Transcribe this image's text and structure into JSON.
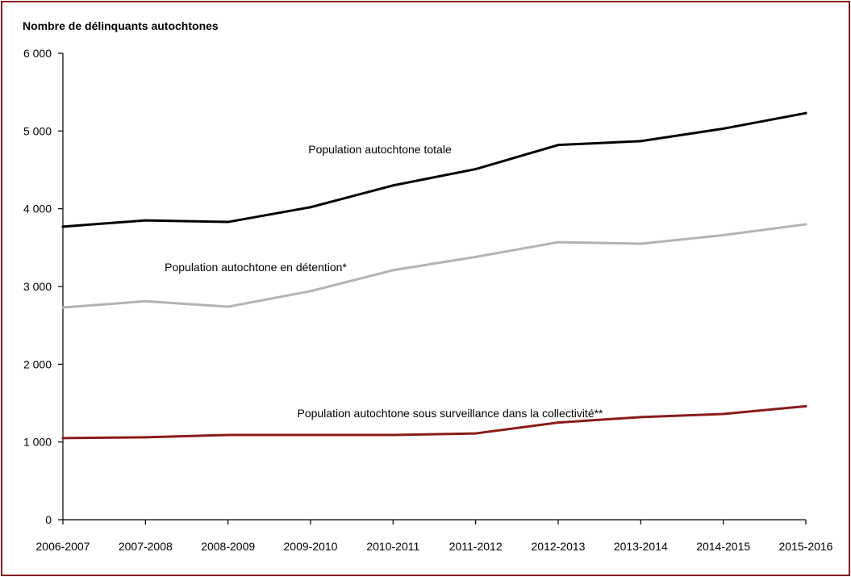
{
  "chart_data": {
    "type": "line",
    "title": "",
    "ylabel": "Nombre de délinquants autochtones",
    "xlabel": "",
    "categories": [
      "2006-2007",
      "2007-2008",
      "2008-2009",
      "2009-2010",
      "2010-2011",
      "2011-2012",
      "2012-2013",
      "2013-2014",
      "2014-2015",
      "2015-2016"
    ],
    "ylim": [
      0,
      6000
    ],
    "yticks": [
      0,
      1000,
      2000,
      3000,
      4000,
      5000,
      6000
    ],
    "ytick_labels": [
      "0",
      "1 000",
      "2 000",
      "3 000",
      "4 000",
      "5 000",
      "6 000"
    ],
    "grid": false,
    "legend": "none",
    "series": [
      {
        "name": "Population autochtone totale",
        "color": "#000000",
        "values": [
          3770,
          3850,
          3830,
          4020,
          4300,
          4510,
          4820,
          4870,
          5030,
          5230
        ]
      },
      {
        "name": "Population autochtone en détention*",
        "color": "#b3b3b3",
        "values": [
          2730,
          2810,
          2740,
          2940,
          3210,
          3380,
          3570,
          3550,
          3660,
          3800
        ]
      },
      {
        "name": "Population autochtone sous surveillance dans la collectivité**",
        "color": "#8b1a1a",
        "values": [
          1050,
          1060,
          1090,
          1090,
          1090,
          1110,
          1250,
          1320,
          1360,
          1460
        ]
      }
    ]
  }
}
